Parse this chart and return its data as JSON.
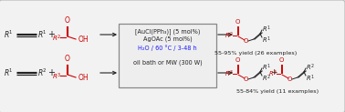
{
  "bg_color": "#f2f2f2",
  "border_color": "#bbbbbb",
  "red": "#cc0000",
  "blue": "#1a1aff",
  "black": "#222222",
  "box_bg": "#eeeeee",
  "box_edge": "#888888",
  "line1": "[AuCl(PPh₃)] (5 mol%)",
  "line2": "AgOAc (5 mol%)",
  "line3": "H₂O / 60 °C / 3-48 h",
  "line4": "oil bath or MW (300 W)",
  "yield1": "55-95% yield (26 examples)",
  "yield2": "55-84% yield (11 examples)",
  "fig_w": 3.78,
  "fig_h": 1.23,
  "dpi": 100
}
